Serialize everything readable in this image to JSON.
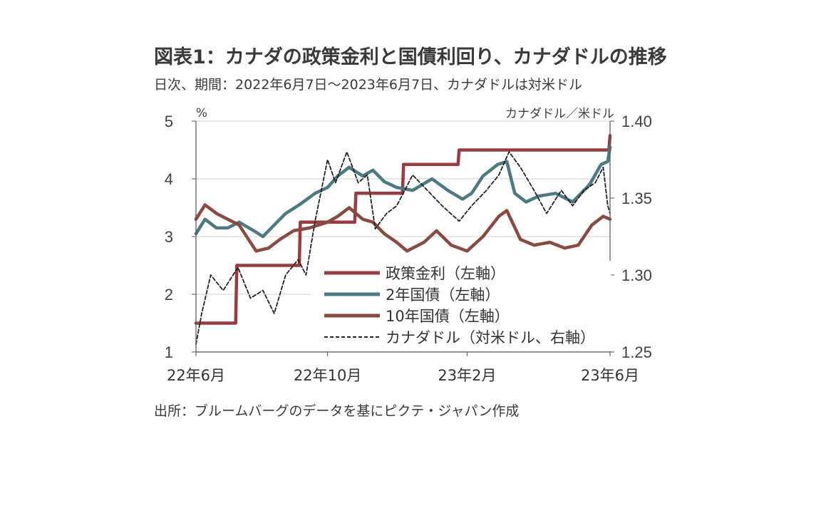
{
  "title": "図表1：カナダの政策金利と国債利回り、カナダドルの推移",
  "subtitle": "日次、期間：2022年6月7日～2023年6月7日、カナダドルは対米ドル",
  "source": "出所：ブルームバーグのデータを基にピクテ・ジャパン作成",
  "chart_data": {
    "type": "line",
    "left_unit": "%",
    "right_unit": "カナダドル／米ドル",
    "left_axis": {
      "min": 1,
      "max": 5,
      "ticks": [
        "1",
        "2",
        "3",
        "4",
        "5"
      ]
    },
    "right_axis": {
      "min": 1.25,
      "max": 1.4,
      "ticks": [
        "1.25",
        "1.30",
        "1.35",
        "1.40"
      ]
    },
    "x_range": [
      "2022-06-07",
      "2023-06-07"
    ],
    "x_ticks": [
      {
        "label": "22年6月",
        "date": "2022-06-07"
      },
      {
        "label": "22年10月",
        "date": "2022-10-01"
      },
      {
        "label": "23年2月",
        "date": "2023-02-01"
      },
      {
        "label": "23年6月",
        "date": "2023-06-07"
      }
    ],
    "grid": "horizontal",
    "legend_position": "bottom-center",
    "series": [
      {
        "name": "政策金利（左軸）",
        "axis": "left",
        "color": "#9e3a3f",
        "style": "solid",
        "points": [
          [
            "2022-06-07",
            1.5
          ],
          [
            "2022-07-12",
            1.5
          ],
          [
            "2022-07-13",
            2.5
          ],
          [
            "2022-09-06",
            2.5
          ],
          [
            "2022-09-07",
            3.25
          ],
          [
            "2022-10-25",
            3.25
          ],
          [
            "2022-10-26",
            3.75
          ],
          [
            "2022-12-06",
            3.75
          ],
          [
            "2022-12-07",
            4.25
          ],
          [
            "2023-01-24",
            4.25
          ],
          [
            "2023-01-25",
            4.5
          ],
          [
            "2023-06-06",
            4.5
          ],
          [
            "2023-06-07",
            4.75
          ]
        ]
      },
      {
        "name": "2年国債（左軸）",
        "axis": "left",
        "color": "#4a7b82",
        "style": "solid",
        "points": [
          [
            "2022-06-07",
            3.05
          ],
          [
            "2022-06-15",
            3.3
          ],
          [
            "2022-06-25",
            3.15
          ],
          [
            "2022-07-05",
            3.15
          ],
          [
            "2022-07-15",
            3.25
          ],
          [
            "2022-07-28",
            3.1
          ],
          [
            "2022-08-05",
            3.0
          ],
          [
            "2022-08-15",
            3.2
          ],
          [
            "2022-08-25",
            3.4
          ],
          [
            "2022-09-06",
            3.55
          ],
          [
            "2022-09-20",
            3.75
          ],
          [
            "2022-10-01",
            3.85
          ],
          [
            "2022-10-10",
            4.05
          ],
          [
            "2022-10-20",
            4.2
          ],
          [
            "2022-11-01",
            4.05
          ],
          [
            "2022-11-10",
            4.15
          ],
          [
            "2022-11-20",
            3.95
          ],
          [
            "2022-12-01",
            3.85
          ],
          [
            "2022-12-15",
            3.8
          ],
          [
            "2023-01-01",
            4.0
          ],
          [
            "2023-01-15",
            3.8
          ],
          [
            "2023-01-28",
            3.65
          ],
          [
            "2023-02-05",
            3.75
          ],
          [
            "2023-02-15",
            4.05
          ],
          [
            "2023-02-28",
            4.25
          ],
          [
            "2023-03-08",
            4.3
          ],
          [
            "2023-03-15",
            3.75
          ],
          [
            "2023-03-25",
            3.6
          ],
          [
            "2023-04-05",
            3.7
          ],
          [
            "2023-04-20",
            3.75
          ],
          [
            "2023-05-05",
            3.6
          ],
          [
            "2023-05-20",
            3.9
          ],
          [
            "2023-05-30",
            4.25
          ],
          [
            "2023-06-05",
            4.3
          ],
          [
            "2023-06-07",
            4.55
          ]
        ]
      },
      {
        "name": "10年国債（左軸）",
        "axis": "left",
        "color": "#8b4a3e",
        "style": "solid",
        "points": [
          [
            "2022-06-07",
            3.3
          ],
          [
            "2022-06-15",
            3.55
          ],
          [
            "2022-06-25",
            3.4
          ],
          [
            "2022-07-05",
            3.3
          ],
          [
            "2022-07-15",
            3.2
          ],
          [
            "2022-07-30",
            2.75
          ],
          [
            "2022-08-10",
            2.8
          ],
          [
            "2022-08-20",
            2.95
          ],
          [
            "2022-09-01",
            3.1
          ],
          [
            "2022-09-15",
            3.15
          ],
          [
            "2022-10-01",
            3.25
          ],
          [
            "2022-10-10",
            3.35
          ],
          [
            "2022-10-20",
            3.5
          ],
          [
            "2022-11-01",
            3.3
          ],
          [
            "2022-11-10",
            3.25
          ],
          [
            "2022-11-20",
            3.05
          ],
          [
            "2022-12-01",
            2.9
          ],
          [
            "2022-12-10",
            2.75
          ],
          [
            "2022-12-25",
            2.9
          ],
          [
            "2023-01-05",
            3.1
          ],
          [
            "2023-01-18",
            2.85
          ],
          [
            "2023-02-01",
            2.75
          ],
          [
            "2023-02-15",
            3.0
          ],
          [
            "2023-03-01",
            3.35
          ],
          [
            "2023-03-08",
            3.45
          ],
          [
            "2023-03-20",
            2.95
          ],
          [
            "2023-04-01",
            2.85
          ],
          [
            "2023-04-15",
            2.9
          ],
          [
            "2023-04-28",
            2.8
          ],
          [
            "2023-05-10",
            2.85
          ],
          [
            "2023-05-22",
            3.2
          ],
          [
            "2023-06-01",
            3.35
          ],
          [
            "2023-06-07",
            3.3
          ]
        ]
      },
      {
        "name": "カナダドル（対米ドル、右軸）",
        "axis": "right",
        "color": "#222222",
        "style": "dashed",
        "points": [
          [
            "2022-06-07",
            1.255
          ],
          [
            "2022-06-12",
            1.275
          ],
          [
            "2022-06-20",
            1.3
          ],
          [
            "2022-07-01",
            1.29
          ],
          [
            "2022-07-14",
            1.305
          ],
          [
            "2022-07-25",
            1.285
          ],
          [
            "2022-08-05",
            1.29
          ],
          [
            "2022-08-15",
            1.275
          ],
          [
            "2022-08-25",
            1.3
          ],
          [
            "2022-09-05",
            1.31
          ],
          [
            "2022-09-12",
            1.3
          ],
          [
            "2022-09-20",
            1.335
          ],
          [
            "2022-10-01",
            1.375
          ],
          [
            "2022-10-08",
            1.36
          ],
          [
            "2022-10-18",
            1.38
          ],
          [
            "2022-10-28",
            1.36
          ],
          [
            "2022-11-05",
            1.365
          ],
          [
            "2022-11-12",
            1.33
          ],
          [
            "2022-11-22",
            1.34
          ],
          [
            "2022-12-01",
            1.345
          ],
          [
            "2022-12-15",
            1.365
          ],
          [
            "2022-12-28",
            1.355
          ],
          [
            "2023-01-10",
            1.345
          ],
          [
            "2023-01-25",
            1.335
          ],
          [
            "2023-02-05",
            1.345
          ],
          [
            "2023-02-18",
            1.355
          ],
          [
            "2023-03-01",
            1.365
          ],
          [
            "2023-03-10",
            1.38
          ],
          [
            "2023-03-20",
            1.37
          ],
          [
            "2023-04-01",
            1.355
          ],
          [
            "2023-04-12",
            1.34
          ],
          [
            "2023-04-25",
            1.355
          ],
          [
            "2023-05-05",
            1.345
          ],
          [
            "2023-05-15",
            1.355
          ],
          [
            "2023-05-25",
            1.36
          ],
          [
            "2023-06-01",
            1.37
          ],
          [
            "2023-06-05",
            1.345
          ],
          [
            "2023-06-07",
            1.34
          ]
        ]
      }
    ]
  }
}
